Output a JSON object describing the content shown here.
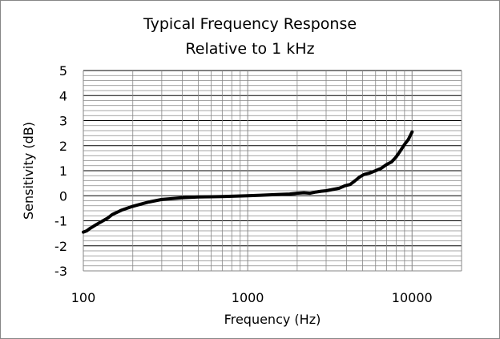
{
  "chart_data": {
    "type": "line",
    "title": [
      "Typical Frequency Response",
      "Relative to 1 kHz"
    ],
    "xlabel": "Frequency (Hz)",
    "ylabel": "Sensitivity (dB)",
    "xscale": "log",
    "xlim": [
      100,
      20000
    ],
    "ylim": [
      -3,
      5
    ],
    "xticks": [
      100,
      1000,
      10000
    ],
    "xtick_labels": [
      "100",
      "1000",
      "10000"
    ],
    "yticks": [
      -3,
      -2,
      -1,
      0,
      1,
      2,
      3,
      4,
      5
    ],
    "ytick_labels": [
      "-3",
      "-2",
      "-1",
      "0",
      "1",
      "2",
      "3",
      "4",
      "5"
    ],
    "grid": true,
    "legend": "none",
    "line_color": "#000000",
    "grid_color": "#868686",
    "series": [
      {
        "x": [
          100,
          105,
          110,
          120,
          130,
          140,
          150,
          170,
          200,
          250,
          300,
          400,
          500,
          600,
          700,
          800,
          1000,
          1200,
          1500,
          1800,
          2000,
          2200,
          2400,
          2600,
          2800,
          3000,
          3300,
          3600,
          3900,
          4200,
          4500,
          4800,
          5100,
          5500,
          6000,
          6500,
          7000,
          7500,
          8000,
          8500,
          9000,
          9500,
          10000
        ],
        "y": [
          -1.45,
          -1.4,
          -1.3,
          -1.15,
          -1.02,
          -0.9,
          -0.75,
          -0.58,
          -0.42,
          -0.25,
          -0.15,
          -0.08,
          -0.05,
          -0.04,
          -0.03,
          -0.02,
          0.0,
          0.02,
          0.05,
          0.07,
          0.1,
          0.12,
          0.1,
          0.15,
          0.18,
          0.2,
          0.25,
          0.3,
          0.4,
          0.45,
          0.6,
          0.75,
          0.85,
          0.9,
          1.0,
          1.1,
          1.25,
          1.35,
          1.55,
          1.8,
          2.05,
          2.25,
          2.55
        ]
      }
    ]
  }
}
